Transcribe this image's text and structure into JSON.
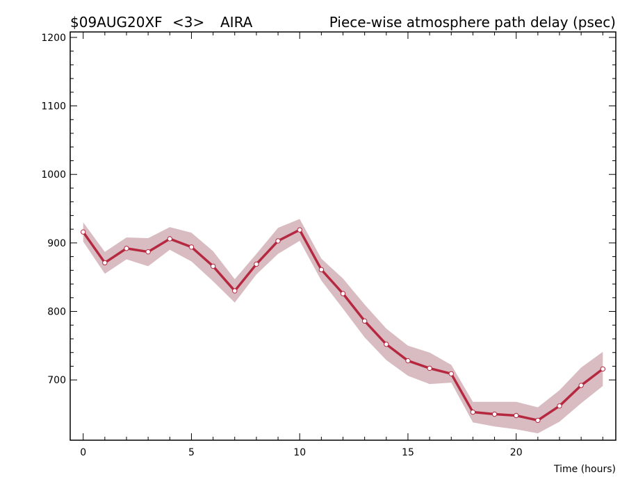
{
  "header": {
    "experiment": "$09AUG20XF",
    "scan": "<3>",
    "station": "AIRA",
    "title": "Piece-wise atmosphere path delay (psec)"
  },
  "chart_data": {
    "type": "line",
    "title": "Piece-wise atmosphere path delay (psec)",
    "xlabel": "Time (hours)",
    "ylabel": "",
    "xlim": [
      -0.6,
      24.6
    ],
    "ylim": [
      612,
      1208
    ],
    "xticks": [
      0,
      5,
      10,
      15,
      20
    ],
    "yticks": [
      700,
      800,
      900,
      1000,
      1100,
      1200
    ],
    "grid": false,
    "colors": {
      "line": "#b5283f",
      "band": "#d8bcc2",
      "marker_fill": "#ffffff"
    },
    "series": [
      {
        "x": [
          0,
          1,
          2,
          3,
          4,
          5,
          6,
          7,
          8,
          9,
          10,
          11,
          12,
          13,
          14,
          15,
          16,
          17,
          18,
          19,
          20,
          21,
          22,
          23,
          24
        ],
        "values": [
          916,
          871,
          892,
          887,
          906,
          894,
          866,
          830,
          869,
          903,
          919,
          861,
          826,
          786,
          752,
          728,
          717,
          709,
          653,
          650,
          648,
          641,
          662,
          692,
          716
        ],
        "upper": [
          930,
          887,
          908,
          907,
          923,
          915,
          888,
          847,
          884,
          922,
          935,
          877,
          848,
          810,
          775,
          750,
          740,
          722,
          668,
          668,
          668,
          660,
          685,
          718,
          741
        ],
        "lower": [
          902,
          855,
          876,
          866,
          890,
          873,
          844,
          813,
          854,
          884,
          903,
          845,
          804,
          762,
          729,
          706,
          694,
          696,
          638,
          632,
          628,
          622,
          639,
          666,
          691
        ]
      }
    ]
  }
}
